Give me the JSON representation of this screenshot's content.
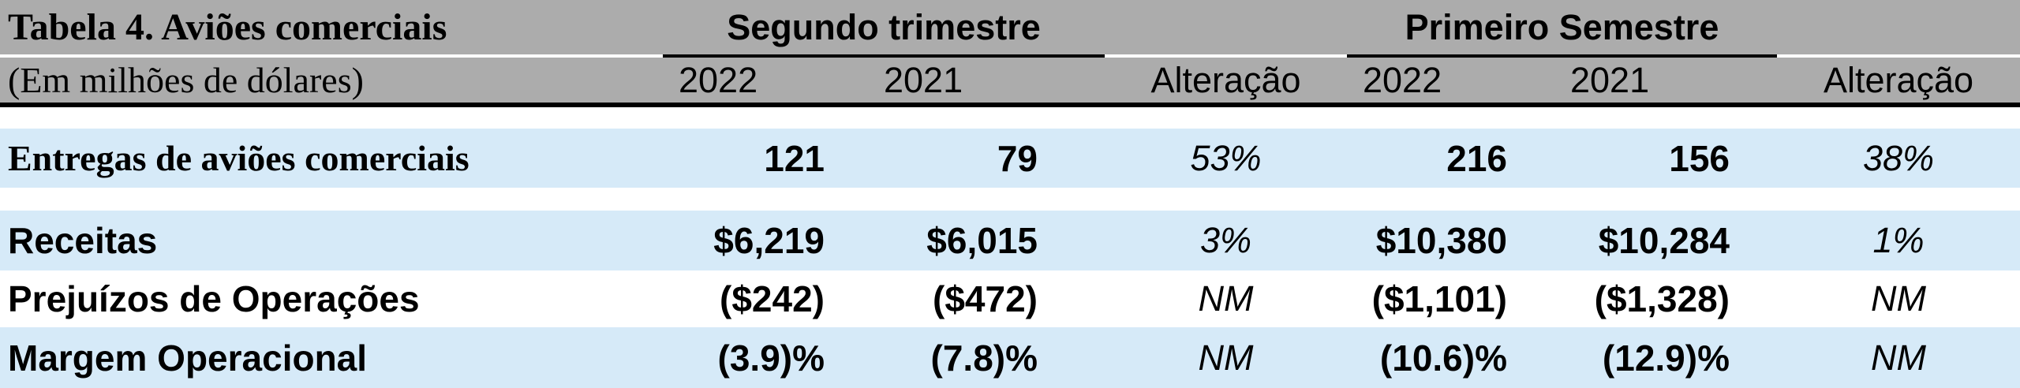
{
  "table": {
    "title": "Tabela 4. Aviões comerciais",
    "subtitle": "(Em milhões de dólares)",
    "groups": [
      {
        "label": "Segundo trimestre"
      },
      {
        "label": "Primeiro Semestre"
      }
    ],
    "col_headers": [
      "2022",
      "2021",
      "Alteração",
      "2022",
      "2021",
      "Alteração"
    ],
    "rows": [
      {
        "label": "Entregas de aviões comerciais",
        "values": [
          "121",
          "79",
          "53%",
          "216",
          "156",
          "38%"
        ]
      },
      {
        "label": "Receitas",
        "values": [
          "$6,219",
          "$6,015",
          "3%",
          "$10,380",
          "$10,284",
          "1%"
        ]
      },
      {
        "label": "Prejuízos de Operações",
        "values": [
          "($242)",
          "($472)",
          "NM",
          "($1,101)",
          "($1,328)",
          "NM"
        ]
      },
      {
        "label": "Margem Operacional",
        "values": [
          "(3.9)%",
          "(7.8)%",
          "NM",
          "(10.6)%",
          "(12.9)%",
          "NM"
        ]
      }
    ],
    "colors": {
      "header_bg": "#ACACAC",
      "stripe_blue": "#D6EAF8",
      "stripe_white": "#FFFFFF",
      "rule": "#000000"
    }
  }
}
